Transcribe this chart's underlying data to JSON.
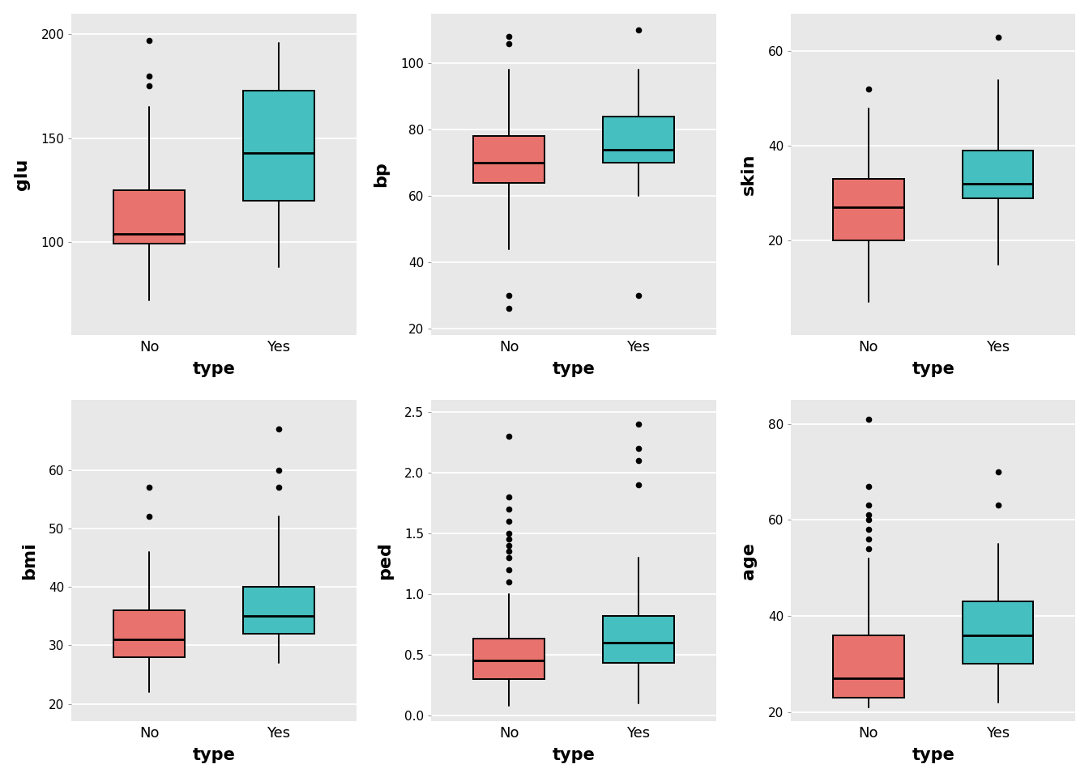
{
  "subplots": [
    {
      "ylabel": "glu",
      "ylim": [
        55,
        210
      ],
      "yticks": [
        100,
        150,
        200
      ],
      "boxes": {
        "No": {
          "q1": 99,
          "median": 104,
          "q3": 125,
          "whislo": 72,
          "whishi": 165,
          "fliers": [
            175,
            180,
            197
          ]
        },
        "Yes": {
          "q1": 120,
          "median": 143,
          "q3": 173,
          "whislo": 88,
          "whishi": 196,
          "fliers": []
        }
      }
    },
    {
      "ylabel": "bp",
      "ylim": [
        18,
        115
      ],
      "yticks": [
        20,
        40,
        60,
        80,
        100
      ],
      "boxes": {
        "No": {
          "q1": 64,
          "median": 70,
          "q3": 78,
          "whislo": 44,
          "whishi": 98,
          "fliers": [
            108,
            106,
            26,
            30
          ]
        },
        "Yes": {
          "q1": 70,
          "median": 74,
          "q3": 84,
          "whislo": 60,
          "whishi": 98,
          "fliers": [
            110,
            30
          ]
        }
      }
    },
    {
      "ylabel": "skin",
      "ylim": [
        0,
        68
      ],
      "yticks": [
        20,
        40,
        60
      ],
      "boxes": {
        "No": {
          "q1": 20,
          "median": 27,
          "q3": 33,
          "whislo": 7,
          "whishi": 48,
          "fliers": [
            52
          ]
        },
        "Yes": {
          "q1": 29,
          "median": 32,
          "q3": 39,
          "whislo": 15,
          "whishi": 54,
          "fliers": [
            63
          ]
        }
      }
    },
    {
      "ylabel": "bmi",
      "ylim": [
        17,
        72
      ],
      "yticks": [
        20,
        30,
        40,
        50,
        60
      ],
      "boxes": {
        "No": {
          "q1": 28,
          "median": 31,
          "q3": 36,
          "whislo": 22,
          "whishi": 46,
          "fliers": [
            57,
            52
          ]
        },
        "Yes": {
          "q1": 32,
          "median": 35,
          "q3": 40,
          "whislo": 27,
          "whishi": 52,
          "fliers": [
            60,
            67,
            57
          ]
        }
      }
    },
    {
      "ylabel": "ped",
      "ylim": [
        -0.05,
        2.6
      ],
      "yticks": [
        0.0,
        0.5,
        1.0,
        1.5,
        2.0,
        2.5
      ],
      "boxes": {
        "No": {
          "q1": 0.3,
          "median": 0.45,
          "q3": 0.63,
          "whislo": 0.08,
          "whishi": 1.0,
          "fliers": [
            1.1,
            1.2,
            1.3,
            1.35,
            1.4,
            1.45,
            1.5,
            1.6,
            1.7,
            1.8,
            2.3
          ]
        },
        "Yes": {
          "q1": 0.43,
          "median": 0.6,
          "q3": 0.82,
          "whislo": 0.1,
          "whishi": 1.3,
          "fliers": [
            1.9,
            2.1,
            2.2,
            2.4
          ]
        }
      }
    },
    {
      "ylabel": "age",
      "ylim": [
        18,
        85
      ],
      "yticks": [
        20,
        40,
        60,
        80
      ],
      "boxes": {
        "No": {
          "q1": 23,
          "median": 27,
          "q3": 36,
          "whislo": 21,
          "whishi": 52,
          "fliers": [
            54,
            56,
            58,
            60,
            61,
            63,
            67,
            81
          ]
        },
        "Yes": {
          "q1": 30,
          "median": 36,
          "q3": 43,
          "whislo": 22,
          "whishi": 55,
          "fliers": [
            63,
            70
          ]
        }
      }
    }
  ],
  "color_no": "#E8726D",
  "color_yes": "#45BFBF",
  "bg_color": "#E8E8E8",
  "xlabel": "type",
  "categories": [
    "No",
    "Yes"
  ],
  "box_width": 0.55,
  "linewidth": 1.4,
  "flier_size": 5.5
}
